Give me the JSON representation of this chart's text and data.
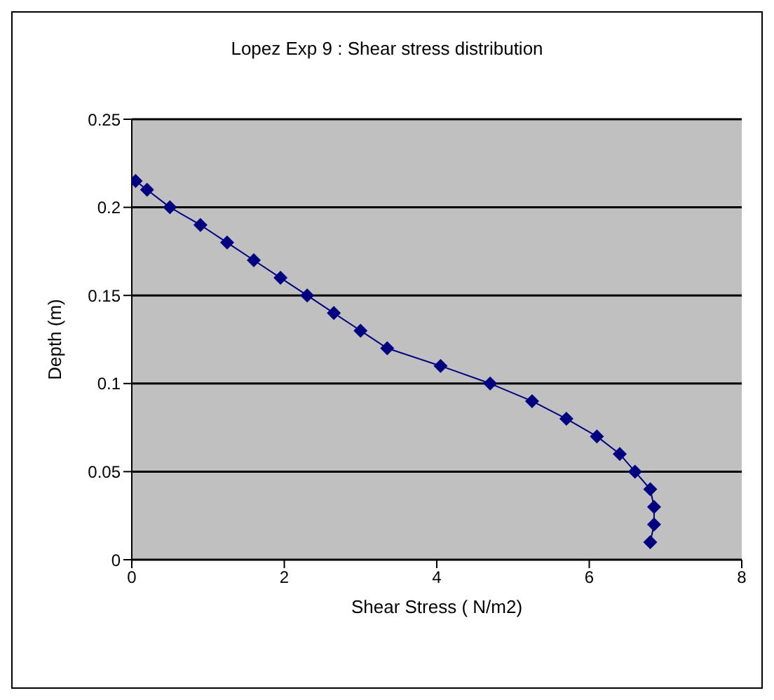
{
  "chart_data": {
    "type": "line",
    "title": "Lopez Exp 9 : Shear stress distribution",
    "xlabel": "Shear Stress ( N/m2)",
    "ylabel": "Depth (m)",
    "x": [
      0.05,
      0.2,
      0.5,
      0.9,
      1.25,
      1.6,
      1.95,
      2.3,
      2.65,
      3.0,
      3.35,
      4.05,
      4.7,
      5.25,
      5.7,
      6.1,
      6.4,
      6.6,
      6.8,
      6.85,
      6.85,
      6.8
    ],
    "series": [
      {
        "color": "#000080",
        "values": [
          0.215,
          0.21,
          0.2,
          0.19,
          0.18,
          0.17,
          0.16,
          0.15,
          0.14,
          0.13,
          0.12,
          0.11,
          0.1,
          0.09,
          0.08,
          0.07,
          0.06,
          0.05,
          0.04,
          0.03,
          0.02,
          0.01
        ]
      }
    ],
    "xlim": [
      0,
      8
    ],
    "xticks": [
      0,
      2,
      4,
      6,
      8
    ],
    "ylim": [
      0,
      0.25
    ],
    "yticks": [
      0,
      0.05,
      0.1,
      0.15,
      0.2,
      0.25
    ],
    "grid": "y",
    "marker": "diamond",
    "line_style": "solid"
  }
}
